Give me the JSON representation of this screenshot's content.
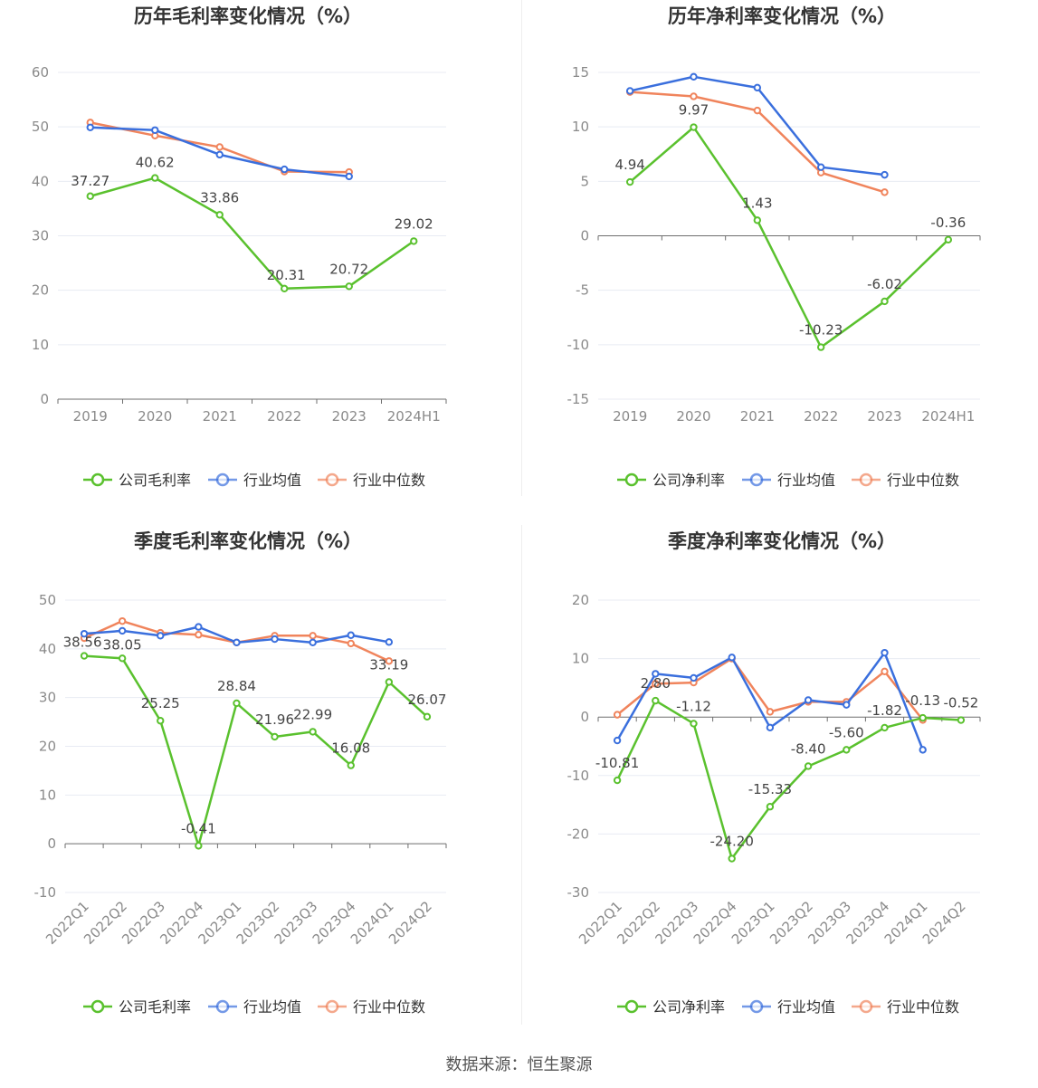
{
  "footer": "数据来源：恒生聚源",
  "colors": {
    "company": "#5ac12e",
    "industry_avg": "#3a6fdd",
    "industry_median": "#f0845c",
    "grid": "#e8ebf3",
    "axis": "#6e6e6e"
  },
  "legend_labels": {
    "gross": [
      "公司毛利率",
      "行业均值",
      "行业中位数"
    ],
    "net": [
      "公司净利率",
      "行业均值",
      "行业中位数"
    ]
  },
  "chart_data": [
    {
      "type": "line",
      "title": "历年毛利率变化情况（%）",
      "categories": [
        "2019",
        "2020",
        "2021",
        "2022",
        "2023",
        "2024H1"
      ],
      "ylim": [
        0,
        60
      ],
      "yticks": [
        0,
        10,
        20,
        30,
        40,
        50,
        60
      ],
      "legend_position": "bottom",
      "series": [
        {
          "name": "公司毛利率",
          "values": [
            37.27,
            40.62,
            33.86,
            20.31,
            20.72,
            29.02
          ],
          "labels": [
            "37.27",
            "40.62",
            "33.86",
            "20.31",
            "20.72",
            "29.02"
          ]
        },
        {
          "name": "行业均值",
          "values": [
            49.9,
            49.4,
            44.9,
            42.2,
            40.9,
            null
          ]
        },
        {
          "name": "行业中位数",
          "values": [
            50.8,
            48.4,
            46.3,
            41.8,
            41.7,
            null
          ]
        }
      ]
    },
    {
      "type": "line",
      "title": "历年净利率变化情况（%）",
      "categories": [
        "2019",
        "2020",
        "2021",
        "2022",
        "2023",
        "2024H1"
      ],
      "ylim": [
        -15,
        15
      ],
      "yticks": [
        -15,
        -10,
        -5,
        0,
        5,
        10,
        15
      ],
      "legend_position": "bottom",
      "series": [
        {
          "name": "公司净利率",
          "values": [
            4.94,
            9.97,
            1.43,
            -10.23,
            -6.02,
            -0.36
          ],
          "labels": [
            "4.94",
            "9.97",
            "1.43",
            "-10.23",
            "-6.02",
            "-0.36"
          ]
        },
        {
          "name": "行业均值",
          "values": [
            13.3,
            14.6,
            13.6,
            6.3,
            5.6,
            null
          ]
        },
        {
          "name": "行业中位数",
          "values": [
            13.2,
            12.8,
            11.5,
            5.8,
            4.0,
            null
          ]
        }
      ]
    },
    {
      "type": "line",
      "title": "季度毛利率变化情况（%）",
      "categories": [
        "2022Q1",
        "2022Q2",
        "2022Q3",
        "2022Q4",
        "2023Q1",
        "2023Q2",
        "2023Q3",
        "2023Q4",
        "2024Q1",
        "2024Q2"
      ],
      "ylim": [
        -10,
        50
      ],
      "yticks": [
        -10,
        0,
        10,
        20,
        30,
        40,
        50
      ],
      "legend_position": "bottom",
      "series": [
        {
          "name": "公司毛利率",
          "values": [
            38.56,
            38.05,
            25.25,
            -0.41,
            28.84,
            21.96,
            22.99,
            16.08,
            33.19,
            26.07
          ],
          "labels": [
            "38.56",
            "38.05",
            "25.25",
            "-0.41",
            "28.84",
            "21.96",
            "22.99",
            "16.08",
            "33.19",
            "26.07"
          ]
        },
        {
          "name": "行业均值",
          "values": [
            43.1,
            43.7,
            42.7,
            44.5,
            41.3,
            42.0,
            41.3,
            42.8,
            41.4,
            null
          ]
        },
        {
          "name": "行业中位数",
          "values": [
            42.2,
            45.7,
            43.3,
            42.9,
            41.3,
            42.7,
            42.7,
            41.1,
            37.5,
            null
          ]
        }
      ]
    },
    {
      "type": "line",
      "title": "季度净利率变化情况（%）",
      "categories": [
        "2022Q1",
        "2022Q2",
        "2022Q3",
        "2022Q4",
        "2023Q1",
        "2023Q2",
        "2023Q3",
        "2023Q4",
        "2024Q1",
        "2024Q2"
      ],
      "ylim": [
        -30,
        20
      ],
      "yticks": [
        -30,
        -20,
        -10,
        0,
        10,
        20
      ],
      "legend_position": "bottom",
      "series": [
        {
          "name": "公司净利率",
          "values": [
            -10.81,
            2.8,
            -1.12,
            -24.2,
            -15.33,
            -8.4,
            -5.6,
            -1.82,
            -0.13,
            -0.52
          ],
          "labels": [
            "-10.81",
            "2.80",
            "-1.12",
            "-24.20",
            "-15.33",
            "-8.40",
            "-5.60",
            "-1.82",
            "-0.13",
            "-0.52"
          ]
        },
        {
          "name": "行业均值",
          "values": [
            -4.0,
            7.4,
            6.7,
            10.2,
            -1.8,
            2.9,
            2.1,
            11.0,
            -5.6,
            null
          ]
        },
        {
          "name": "行业中位数",
          "values": [
            0.4,
            5.7,
            5.9,
            10.0,
            0.9,
            2.6,
            2.6,
            7.8,
            -0.5,
            null
          ]
        }
      ]
    }
  ]
}
